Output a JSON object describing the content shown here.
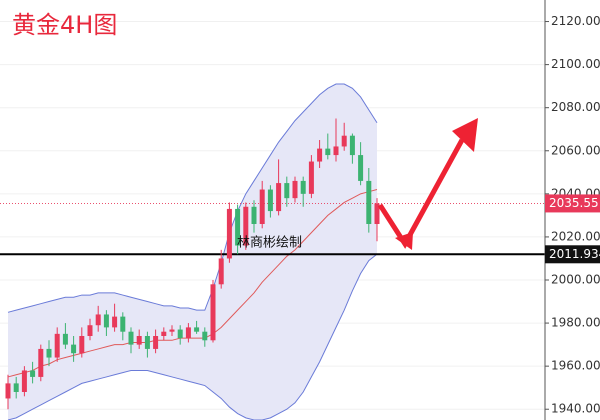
{
  "chart_data": {
    "type": "candlestick",
    "title": "黄金4H图",
    "annotation": "林商彬绘制",
    "up_color": "#e8395a",
    "down_color": "#3cb371",
    "band_color": "#6a7bd8",
    "middle_color": "#e05a5a",
    "band_fill": "#e6e7f7",
    "open": [
      1945,
      1952,
      1948,
      1958,
      1955,
      1968,
      1964,
      1975,
      1970,
      1966,
      1974,
      1979,
      1984,
      1978,
      1983,
      1976,
      1970,
      1974,
      1968,
      1974,
      1976,
      1977,
      1973,
      1978,
      1976,
      1972,
      1998,
      2010,
      2033,
      2016,
      2034,
      2026,
      2042,
      2032,
      2045,
      2038,
      2046,
      2040,
      2055,
      2061,
      2058,
      2062,
      2067,
      2058,
      2046,
      2026
    ],
    "high": [
      1956,
      1955,
      1960,
      1962,
      1970,
      1972,
      1978,
      1980,
      1974,
      1978,
      1982,
      1988,
      1986,
      1989,
      1985,
      1978,
      1977,
      1976,
      1977,
      1978,
      1979,
      1979,
      1980,
      1981,
      1978,
      2000,
      2014,
      2036,
      2035,
      2036,
      2037,
      2046,
      2044,
      2056,
      2048,
      2048,
      2048,
      2058,
      2065,
      2068,
      2075,
      2073,
      2068,
      2064,
      2052,
      2038
    ],
    "low": [
      1940,
      1945,
      1946,
      1952,
      1953,
      1960,
      1962,
      1968,
      1962,
      1964,
      1972,
      1976,
      1974,
      1976,
      1972,
      1966,
      1968,
      1964,
      1966,
      1972,
      1974,
      1970,
      1971,
      1975,
      1969,
      1971,
      1996,
      2008,
      2012,
      2014,
      2022,
      2024,
      2029,
      2030,
      2034,
      2036,
      2034,
      2038,
      2052,
      2056,
      2055,
      2060,
      2054,
      2044,
      2022,
      2018
    ],
    "close": [
      1952,
      1948,
      1958,
      1955,
      1968,
      1964,
      1975,
      1970,
      1966,
      1974,
      1979,
      1984,
      1978,
      1983,
      1976,
      1970,
      1974,
      1968,
      1974,
      1976,
      1977,
      1973,
      1978,
      1976,
      1972,
      1998,
      2010,
      2033,
      2016,
      2034,
      2026,
      2042,
      2032,
      2045,
      2038,
      2046,
      2040,
      2055,
      2061,
      2058,
      2062,
      2067,
      2058,
      2046,
      2026,
      2035.55
    ],
    "bands": {
      "upper": [
        1985,
        1986,
        1987,
        1988,
        1989,
        1990,
        1991,
        1992,
        1992,
        1993,
        1993,
        1994,
        1994,
        1994,
        1993,
        1992,
        1991,
        1990,
        1989,
        1988,
        1988,
        1987,
        1987,
        1986,
        1986,
        1996,
        2008,
        2022,
        2032,
        2040,
        2046,
        2052,
        2058,
        2064,
        2069,
        2074,
        2078,
        2082,
        2086,
        2089,
        2091,
        2091,
        2089,
        2085,
        2079,
        2073
      ],
      "middle": [
        1955,
        1956,
        1957,
        1958,
        1960,
        1961,
        1963,
        1964,
        1965,
        1966,
        1967,
        1968,
        1969,
        1970,
        1970,
        1971,
        1971,
        1971,
        1972,
        1972,
        1972,
        1973,
        1973,
        1973,
        1973,
        1975,
        1978,
        1982,
        1986,
        1990,
        1994,
        1999,
        2003,
        2007,
        2011,
        2014,
        2018,
        2022,
        2026,
        2030,
        2033,
        2036,
        2038,
        2040,
        2041,
        2042
      ],
      "lower": [
        1935,
        1936,
        1938,
        1940,
        1942,
        1944,
        1946,
        1948,
        1950,
        1952,
        1953,
        1954,
        1955,
        1956,
        1957,
        1958,
        1958,
        1958,
        1957,
        1956,
        1955,
        1954,
        1953,
        1952,
        1951,
        1948,
        1945,
        1941,
        1938,
        1936,
        1935,
        1935,
        1936,
        1938,
        1940,
        1943,
        1948,
        1955,
        1962,
        1970,
        1978,
        1986,
        1995,
        2003,
        2009,
        2012
      ]
    },
    "current_price": 2035.55,
    "support_level": 2011.934,
    "ylim": [
      1935,
      2130
    ],
    "yticks": [
      {
        "value": 1940,
        "label": "1940.00"
      },
      {
        "value": 1960,
        "label": "1960.00"
      },
      {
        "value": 1980,
        "label": "1980.00"
      },
      {
        "value": 2000,
        "label": "2000.00"
      },
      {
        "value": 2020,
        "label": "2020.00"
      },
      {
        "value": 2040,
        "label": "2040.00"
      },
      {
        "value": 2060,
        "label": "2060.00"
      },
      {
        "value": 2080,
        "label": "2080.00"
      },
      {
        "value": 2100,
        "label": "2100.00"
      },
      {
        "value": 2120,
        "label": "2120.00"
      }
    ],
    "grid": true
  }
}
